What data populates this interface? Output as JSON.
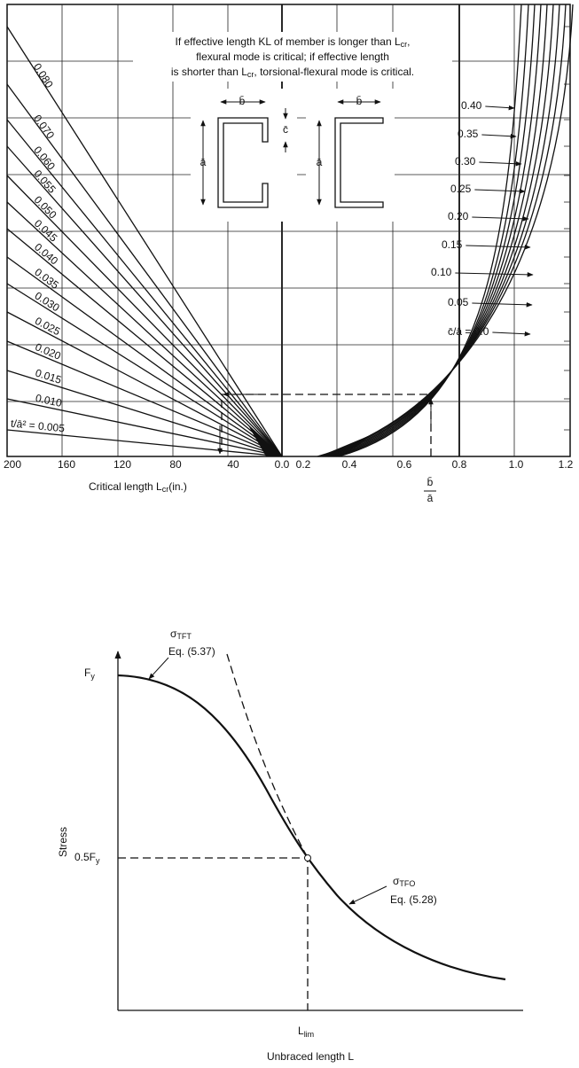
{
  "top_chart": {
    "note": [
      "If effective length KL of member is longer than L",
      "cr",
      ",",
      "flexural mode is critical; if effective length",
      "is shorter than L",
      "cr",
      ", torsional-flexural mode is critical."
    ],
    "section_labels": [
      "b̄",
      "c̄",
      "ā",
      "b̄",
      "ā"
    ],
    "left_axis_ticks": [
      "200",
      "160",
      "120",
      "80",
      "40",
      "0.0"
    ],
    "right_axis_ticks": [
      "0.2",
      "0.4",
      "0.6",
      "0.8",
      "1.0",
      "1.2"
    ],
    "left_axis_title": [
      "Critical length L",
      "cr",
      "(in.)"
    ],
    "right_axis_title": [
      "b̄",
      "ā"
    ],
    "t_over_a2_labels": [
      "0.080",
      "0.070",
      "0.060",
      "0.055",
      "0.050",
      "0.045",
      "0.040",
      "0.035",
      "0.030",
      "0.025",
      "0.020",
      "0.015",
      "0.010",
      "t/ā² = 0.005"
    ],
    "c_over_a_labels": [
      "0.40",
      "0.35",
      "0.30",
      "0.25",
      "0.20",
      "0.15",
      "0.10",
      "0.05",
      "c̄/ā = 0.0"
    ]
  },
  "bottom_chart": {
    "y_axis_title": "Stress",
    "fy": [
      "F",
      "y"
    ],
    "half_fy": [
      "0.5F",
      "y"
    ],
    "tft": [
      "σ",
      "TFT",
      "Eq. (5.37)"
    ],
    "tfo": [
      "σ",
      "TFO",
      "Eq. (5.28)"
    ],
    "l_lim": [
      "L",
      "lim"
    ],
    "x_axis_title": "Unbraced length L"
  }
}
